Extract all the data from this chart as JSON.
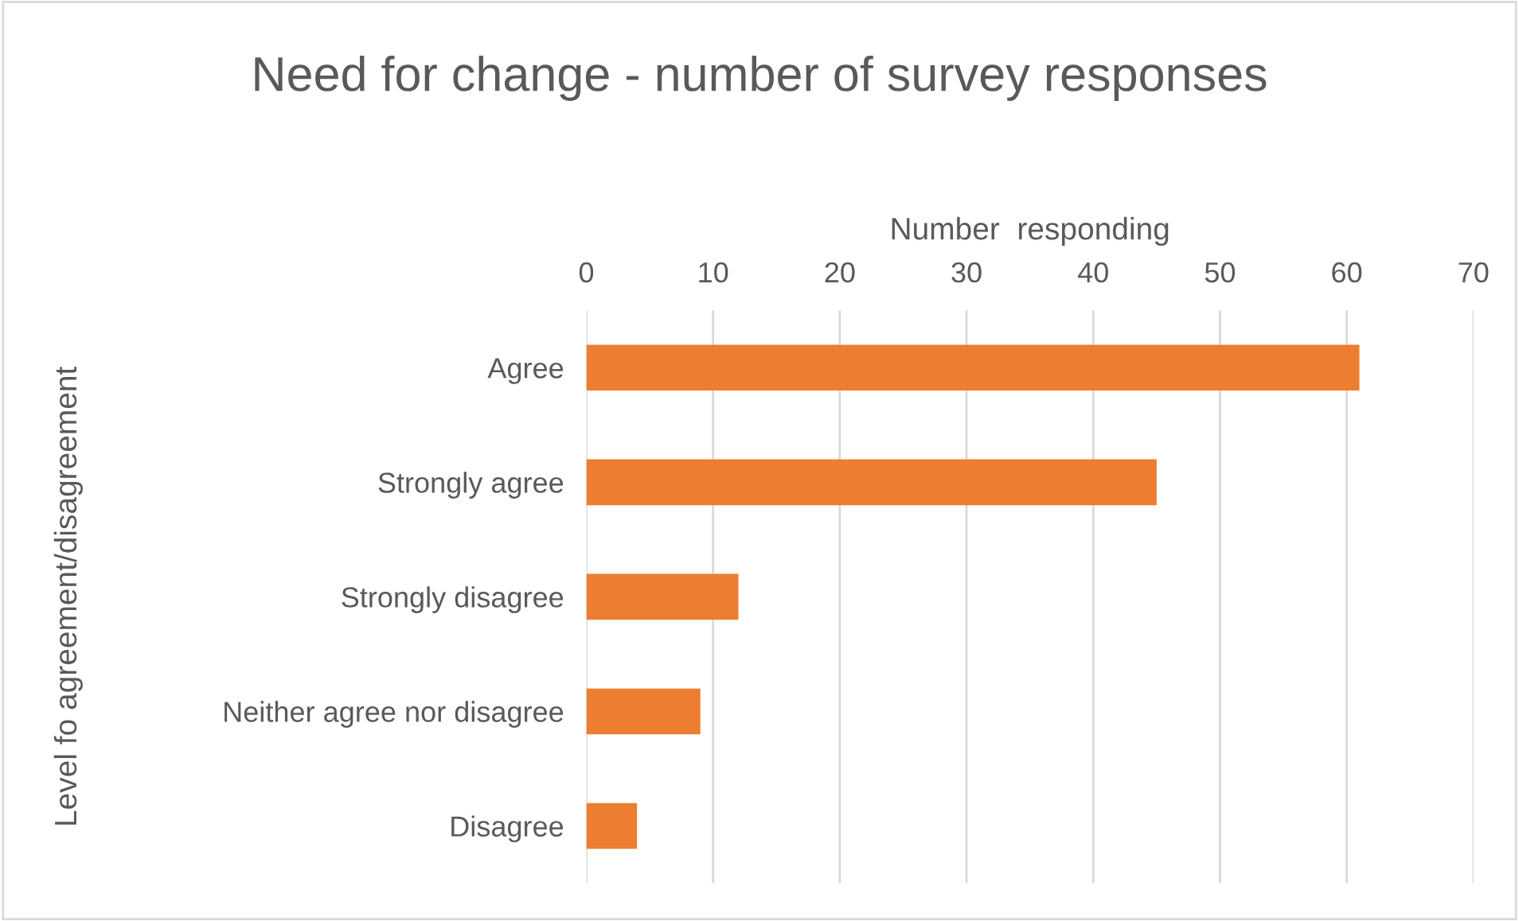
{
  "chart_data": {
    "type": "bar",
    "orientation": "horizontal",
    "title": "Need for change - number of survey responses",
    "xlabel": "Number  responding",
    "ylabel": "Level fo agreement/disagreement",
    "categories": [
      "Agree",
      "Strongly agree",
      "Strongly disagree",
      "Neither agree nor disagree",
      "Disagree"
    ],
    "values": [
      61,
      45,
      12,
      9,
      4
    ],
    "color": "#ed7d31",
    "xlim": [
      0,
      70
    ],
    "xticks": [
      0,
      10,
      20,
      30,
      40,
      50,
      60,
      70
    ],
    "grid": "x",
    "legend": false
  }
}
